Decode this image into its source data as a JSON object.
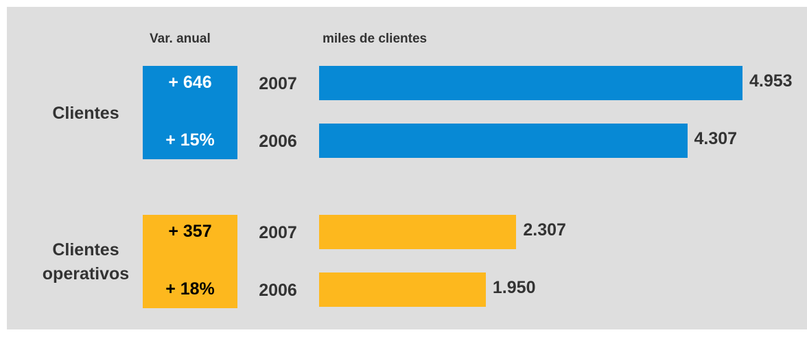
{
  "chart_data": {
    "type": "bar",
    "variation_header": "Var. anual",
    "unit_label": "miles de clientes",
    "groups": [
      {
        "name": "Clientes",
        "color": "#0789d5",
        "box_text_color": "#ffffff",
        "change": "+ 646",
        "change_pct": "+ 15%",
        "categories": [
          "2007",
          "2006"
        ],
        "values": [
          4953,
          4307
        ],
        "value_labels": [
          "4.953",
          "4.307"
        ]
      },
      {
        "name": "Clientes operativos",
        "color": "#fdb81e",
        "box_text_color": "#000000",
        "change": "+ 357",
        "change_pct": "+ 18%",
        "categories": [
          "2007",
          "2006"
        ],
        "values": [
          2307,
          1950
        ],
        "value_labels": [
          "2.307",
          "1.950"
        ]
      }
    ]
  }
}
